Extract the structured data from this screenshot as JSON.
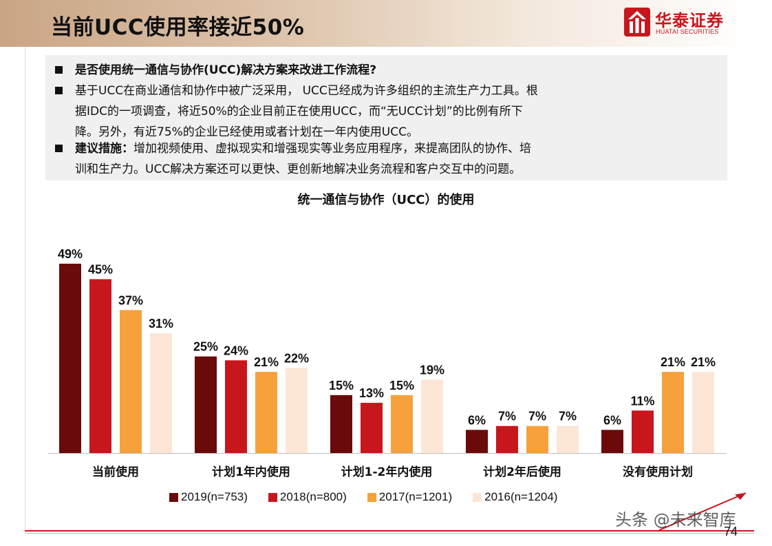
{
  "header": {
    "title": "当前UCC使用率接近50%"
  },
  "logo": {
    "cn": "华泰证券",
    "en": "HUATAI SECURITIES"
  },
  "bullets": {
    "b1": "是否使用统一通信与协作(UCC)解决方案来改进工作流程?",
    "b2_l1": "基于UCC在商业通信和协作中被广泛采用， UCC已经成为许多组织的主流生产力工具。根",
    "b2_l2": "据IDC的一项调查，将近50%的企业目前正在使用UCC，而“无UCC计划”的比例有所下",
    "b2_l3": "降。另外，有近75%的企业已经使用或者计划在一年内使用UCC。",
    "b3_bold": "建议措施：",
    "b3_l1": "增加视频使用、虚拟现实和增强现实等业务应用程序，来提高团队的协作、培",
    "b3_l2": "训和生产力。UCC解决方案还可以更快、更创新地解决业务流程和客户交互中的问题。"
  },
  "chart_data": {
    "type": "bar",
    "title": "统一通信与协作（UCC）的使用",
    "categories": [
      "当前使用",
      "计划1年内使用",
      "计划1-2年内使用",
      "计划2年后使用",
      "没有使用计划"
    ],
    "series": [
      {
        "name": "2019(n=753)",
        "color": "#6b0a0a",
        "values": [
          49,
          25,
          15,
          6,
          6
        ]
      },
      {
        "name": "2018(n=800)",
        "color": "#c8161d",
        "values": [
          45,
          24,
          13,
          7,
          11
        ]
      },
      {
        "name": "2017(n=1201)",
        "color": "#f7a13c",
        "values": [
          37,
          21,
          15,
          7,
          21
        ]
      },
      {
        "name": "2016(n=1204)",
        "color": "#fde6d6",
        "values": [
          31,
          22,
          19,
          7,
          21
        ]
      }
    ],
    "value_suffix": "%",
    "ylim": [
      0,
      49
    ],
    "grid": false,
    "legend_position": "bottom"
  },
  "footer": {
    "watermark": "头条 @未来智库",
    "page": "74"
  }
}
